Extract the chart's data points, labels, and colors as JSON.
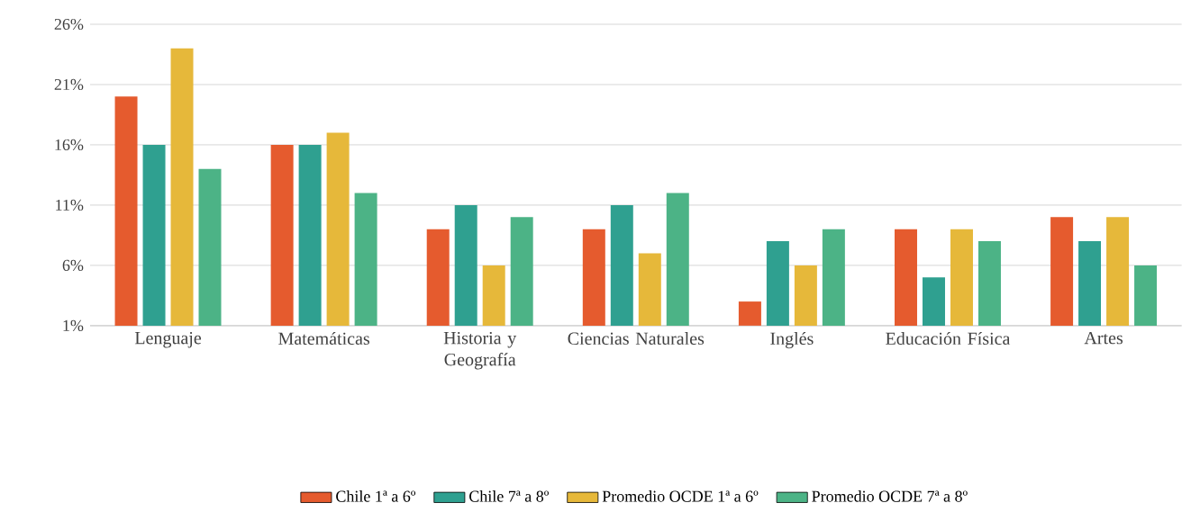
{
  "chart_data": {
    "type": "bar",
    "categories": [
      "Lenguaje",
      "Matemáticas",
      "Historia y Geografía",
      "Ciencias Naturales",
      "Inglés",
      "Educación Física",
      "Artes"
    ],
    "series": [
      {
        "name": "Chile 1ª a 6º",
        "color": "#e55b2e",
        "values": [
          20,
          16,
          9,
          9,
          3,
          9,
          10
        ]
      },
      {
        "name": "Chile 7ª a 8º",
        "color": "#2fa090",
        "values": [
          16,
          16,
          11,
          11,
          8,
          5,
          8
        ]
      },
      {
        "name": "Promedio OCDE 1ª a 6º",
        "color": "#e6b83a",
        "values": [
          24,
          17,
          6,
          7,
          6,
          9,
          10
        ]
      },
      {
        "name": "Promedio OCDE 7ª a 8º",
        "color": "#4cb386",
        "values": [
          14,
          12,
          10,
          12,
          9,
          8,
          6
        ]
      }
    ],
    "ylim": [
      1,
      26
    ],
    "yticks": [
      {
        "value": 1,
        "label": "1%"
      },
      {
        "value": 6,
        "label": "6%"
      },
      {
        "value": 11,
        "label": "11%"
      },
      {
        "value": 16,
        "label": "16%"
      },
      {
        "value": 21,
        "label": "21%"
      },
      {
        "value": 26,
        "label": "26%"
      }
    ],
    "grid": "y",
    "legend": "bottom"
  }
}
